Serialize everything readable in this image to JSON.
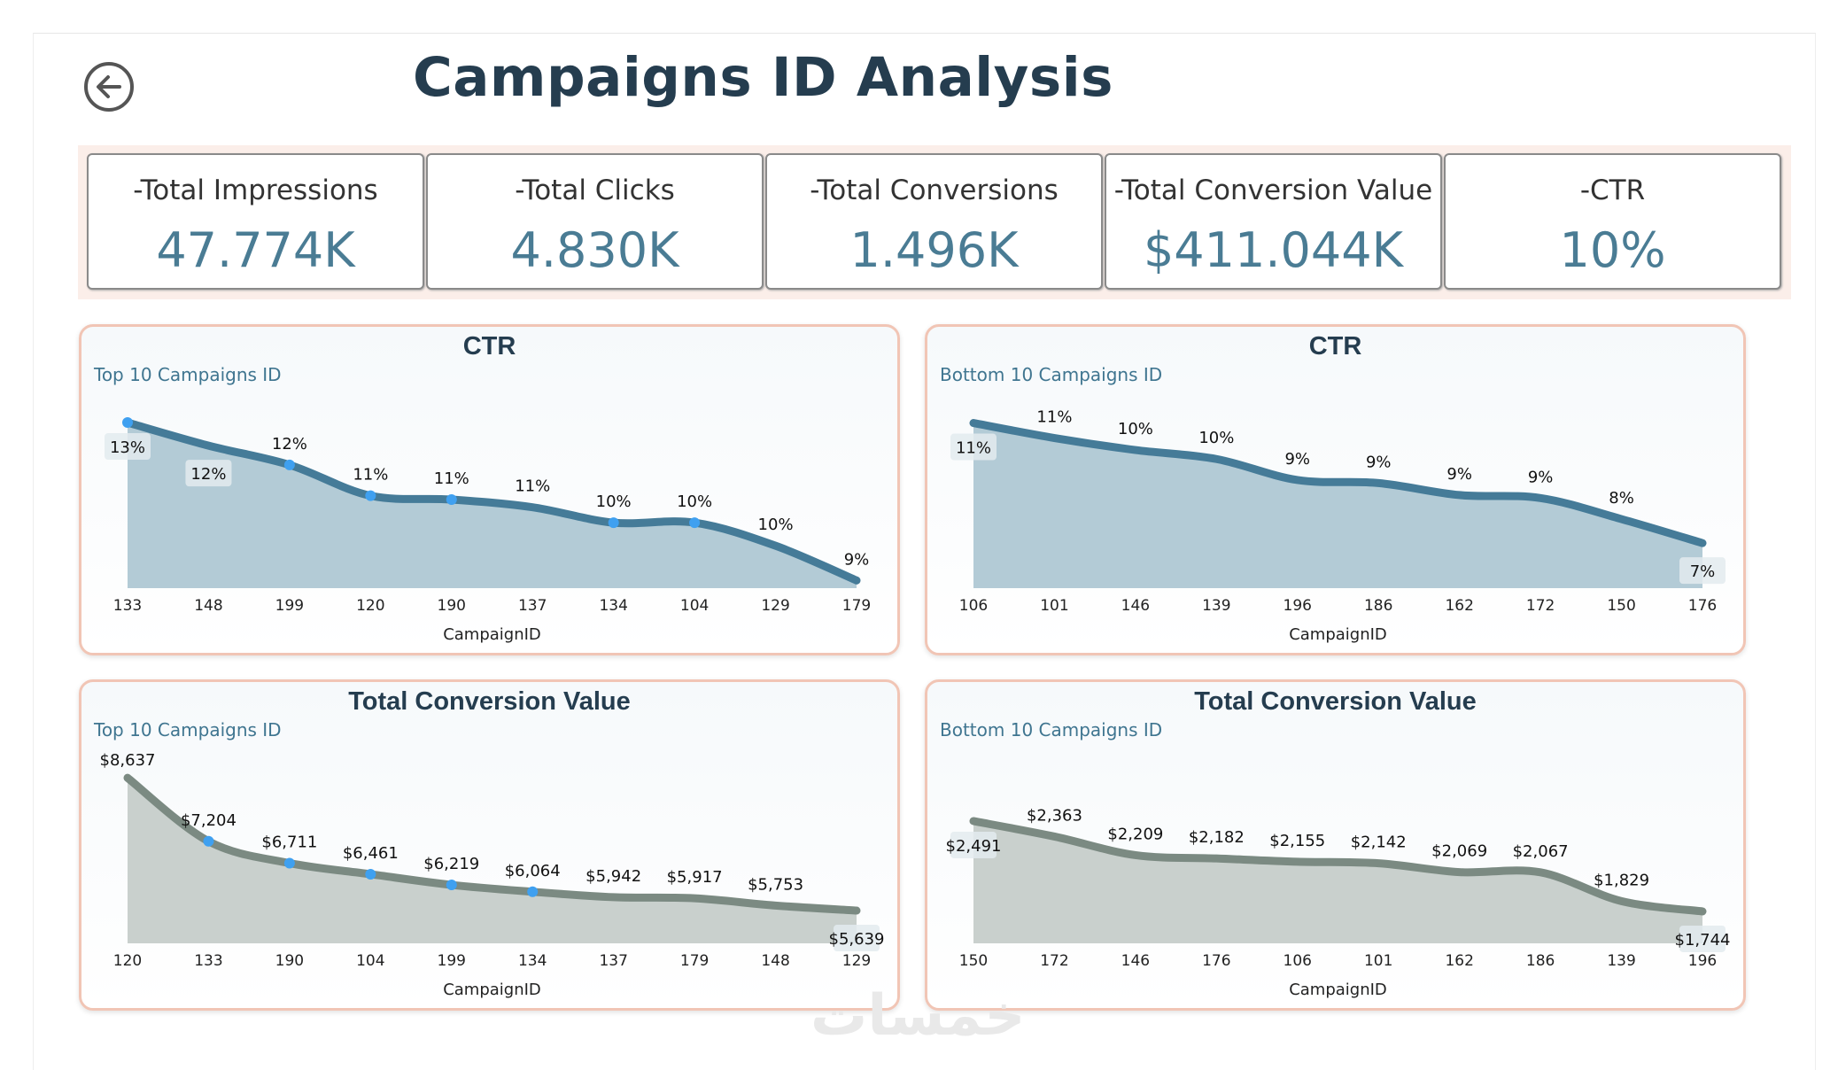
{
  "header": {
    "title": "Campaigns ID Analysis",
    "back_icon": "arrow-left-circle-icon"
  },
  "kpis": [
    {
      "label": "-Total Impressions",
      "value": "47.774K"
    },
    {
      "label": "-Total Clicks",
      "value": "4.830K"
    },
    {
      "label": "-Total Conversions",
      "value": "1.496K"
    },
    {
      "label": "-Total Conversion Value",
      "value": "$411.044K"
    },
    {
      "label": "-CTR",
      "value": "10%"
    }
  ],
  "colors": {
    "title": "#253d4f",
    "kpi_value": "#4a7c94",
    "ctr_line": "#457b98",
    "ctr_fill": "#b3cbd6",
    "value_line": "#7b8a82",
    "value_fill": "#c9d0cd",
    "dot": "#3fa0f0",
    "panel_border": "#f1c5b5"
  },
  "watermark": "خمسات",
  "chart_data": [
    {
      "type": "area",
      "title": "CTR",
      "subtitle": "Top 10 Campaigns ID",
      "xlabel": "CampaignID",
      "ylabel": "",
      "categories": [
        "133",
        "148",
        "199",
        "120",
        "190",
        "137",
        "134",
        "104",
        "129",
        "179"
      ],
      "values": [
        13.0,
        12.4,
        11.9,
        11.1,
        11.0,
        10.8,
        10.4,
        10.4,
        9.8,
        8.9
      ],
      "labels": [
        "13%",
        "12%",
        "12%",
        "11%",
        "11%",
        "11%",
        "10%",
        "10%",
        "10%",
        "9%"
      ],
      "ylim": [
        8.7,
        13.3
      ],
      "grid": false,
      "style": "ctr"
    },
    {
      "type": "area",
      "title": "CTR",
      "subtitle": "Bottom 10 Campaigns ID",
      "xlabel": "CampaignID",
      "ylabel": "",
      "categories": [
        "106",
        "101",
        "146",
        "139",
        "196",
        "186",
        "162",
        "172",
        "150",
        "176"
      ],
      "values": [
        11.0,
        10.5,
        10.1,
        9.8,
        9.1,
        9.0,
        8.6,
        8.5,
        7.8,
        7.0
      ],
      "labels": [
        "11%",
        "11%",
        "10%",
        "10%",
        "9%",
        "9%",
        "9%",
        "9%",
        "8%",
        "7%"
      ],
      "ylim": [
        5.5,
        11.4
      ],
      "grid": false,
      "style": "ctr"
    },
    {
      "type": "area",
      "title": "Total Conversion Value",
      "subtitle": "Top 10 Campaigns ID",
      "xlabel": "CampaignID",
      "ylabel": "",
      "categories": [
        "120",
        "133",
        "190",
        "104",
        "199",
        "134",
        "137",
        "179",
        "148",
        "129"
      ],
      "values": [
        8637,
        7204,
        6711,
        6461,
        6219,
        6064,
        5942,
        5917,
        5753,
        5639
      ],
      "labels": [
        "$8,637",
        "$7,204",
        "$6,711",
        "$6,461",
        "$6,219",
        "$6,064",
        "$5,942",
        "$5,917",
        "$5,753",
        "$5,639"
      ],
      "ylim": [
        4900,
        8900
      ],
      "grid": false,
      "style": "value"
    },
    {
      "type": "area",
      "title": "Total Conversion Value",
      "subtitle": "Bottom 10 Campaigns ID",
      "xlabel": "CampaignID",
      "ylabel": "",
      "categories": [
        "150",
        "172",
        "146",
        "176",
        "106",
        "101",
        "162",
        "186",
        "139",
        "196"
      ],
      "values": [
        2491,
        2363,
        2209,
        2182,
        2155,
        2142,
        2069,
        2067,
        1829,
        1744
      ],
      "labels": [
        "$2,491",
        "$2,363",
        "$2,209",
        "$2,182",
        "$2,155",
        "$2,142",
        "$2,069",
        "$2,067",
        "$1,829",
        "$1,744"
      ],
      "ylim": [
        1480,
        2945
      ],
      "grid": false,
      "style": "value"
    }
  ]
}
